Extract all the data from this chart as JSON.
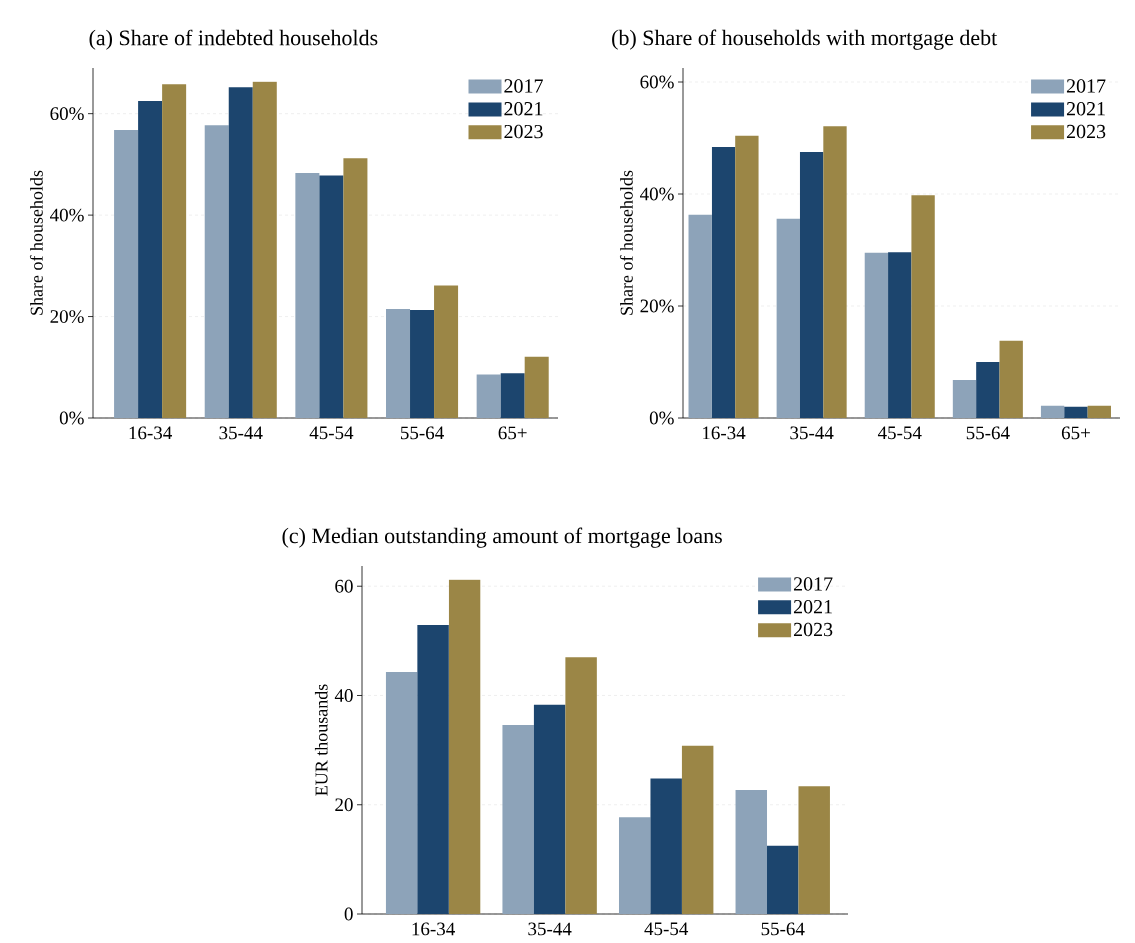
{
  "chart_data": [
    {
      "type": "bar",
      "title": "(a) Share of indebted households",
      "ylabel": "Share of households",
      "categories": [
        "16-34",
        "35-44",
        "45-54",
        "55-64",
        "65+"
      ],
      "series": [
        {
          "name": "2017",
          "color": "#8da3b9",
          "values": [
            56.8,
            57.7,
            48.3,
            21.5,
            8.6
          ]
        },
        {
          "name": "2021",
          "color": "#1c456e",
          "values": [
            62.5,
            65.2,
            47.8,
            21.3,
            8.8
          ]
        },
        {
          "name": "2023",
          "color": "#9b8646",
          "values": [
            65.8,
            66.3,
            51.2,
            26.1,
            12.1
          ]
        }
      ],
      "ylim": [
        0,
        69
      ],
      "yticks": [
        {
          "value": 0,
          "label": "0%"
        },
        {
          "value": 20,
          "label": "20%"
        },
        {
          "value": 40,
          "label": "40%"
        },
        {
          "value": 60,
          "label": "60%"
        }
      ],
      "grid": "y",
      "legend": "top right"
    },
    {
      "type": "bar",
      "title": "(b) Share of households with mortgage debt",
      "ylabel": "Share of households",
      "categories": [
        "16-34",
        "35-44",
        "45-54",
        "55-64",
        "65+"
      ],
      "series": [
        {
          "name": "2017",
          "color": "#8da3b9",
          "values": [
            36.3,
            35.6,
            29.5,
            6.8,
            2.2
          ]
        },
        {
          "name": "2021",
          "color": "#1c456e",
          "values": [
            48.4,
            47.5,
            29.6,
            10.0,
            2.0
          ]
        },
        {
          "name": "2023",
          "color": "#9b8646",
          "values": [
            50.4,
            52.1,
            39.8,
            13.8,
            2.2
          ]
        }
      ],
      "ylim": [
        0,
        62.5
      ],
      "yticks": [
        {
          "value": 0,
          "label": "0%"
        },
        {
          "value": 20,
          "label": "20%"
        },
        {
          "value": 40,
          "label": "40%"
        },
        {
          "value": 60,
          "label": "60%"
        }
      ],
      "grid": "y",
      "legend": "top right"
    },
    {
      "type": "bar",
      "title": "(c) Median outstanding amount of mortgage loans",
      "ylabel": "EUR thousands",
      "categories": [
        "16-34",
        "35-44",
        "45-54",
        "55-64"
      ],
      "series": [
        {
          "name": "2017",
          "color": "#8da3b9",
          "values": [
            44.3,
            34.6,
            17.7,
            22.7
          ]
        },
        {
          "name": "2021",
          "color": "#1c456e",
          "values": [
            52.9,
            38.3,
            24.8,
            12.5
          ]
        },
        {
          "name": "2023",
          "color": "#9b8646",
          "values": [
            61.2,
            47.0,
            30.8,
            23.4
          ]
        }
      ],
      "ylim": [
        0,
        63.7
      ],
      "yticks": [
        0,
        20,
        40,
        60
      ],
      "grid": "y",
      "legend": "top right"
    }
  ]
}
